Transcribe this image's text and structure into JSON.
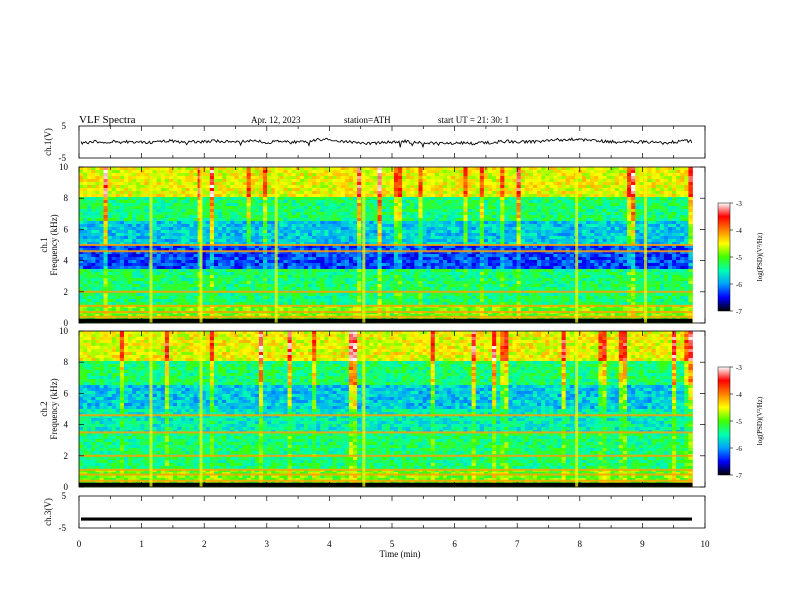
{
  "header": {
    "title": "VLF  Spectra",
    "date": "Apr. 12, 2023",
    "station": "station=ATH",
    "start": "start  UT  =    21: 30: 1"
  },
  "chart_data": [
    {
      "type": "line",
      "ylabel": "ch.1(V)",
      "ylim": [
        -5,
        5
      ],
      "yticks": [
        "5",
        "-5"
      ],
      "baseline": 0,
      "color": "#000000"
    },
    {
      "type": "heatmap",
      "ylabel": "ch.1",
      "ylabel2": "Frequency  (kHz)",
      "ylim": [
        0,
        10
      ],
      "yticks": [
        "10",
        "8",
        "6",
        "4",
        "2",
        "0"
      ],
      "xlim": [
        0,
        9.8
      ],
      "colorbar": {
        "label": "log(PSD)(V²/Hz)",
        "range": [
          -7,
          -3
        ],
        "ticks": [
          "-3",
          "-4",
          "-5",
          "-6",
          "-7"
        ],
        "colors": [
          "#000000",
          "#0000ff",
          "#00a0ff",
          "#00ffb0",
          "#40ff00",
          "#ffff00",
          "#ff8000",
          "#ff0000",
          "#ffffff"
        ]
      },
      "strong_lines_khz": [
        0.4,
        0.7,
        1.1,
        2.0,
        4.6,
        5.0
      ],
      "bursts_min": [
        1.15,
        1.95,
        3.15,
        4.55,
        7.95,
        9.05
      ]
    },
    {
      "type": "heatmap",
      "ylabel": "ch.2",
      "ylabel2": "Frequency  (kHz)",
      "ylim": [
        0,
        10
      ],
      "yticks": [
        "10",
        "8",
        "6",
        "4",
        "2",
        "0"
      ],
      "xlim": [
        0,
        9.8
      ],
      "colorbar": {
        "label": "log(PSD)(V²/Hz)",
        "range": [
          -7,
          -3
        ],
        "ticks": [
          "-3",
          "-4",
          "-5",
          "-6",
          "-7"
        ]
      },
      "strong_lines_khz": [
        0.4,
        0.8,
        1.1,
        2.0,
        3.5,
        4.6
      ],
      "bursts_min": [
        1.15,
        1.95,
        4.55,
        7.95
      ]
    },
    {
      "type": "line",
      "ylabel": "ch.3(V)",
      "ylim": [
        -5,
        5
      ],
      "yticks": [
        "5",
        "-5"
      ],
      "baseline": -2.2,
      "color": "#000000"
    }
  ],
  "xaxis": {
    "label": "Time  (min)",
    "ticks": [
      "0",
      "1",
      "2",
      "3",
      "4",
      "5",
      "6",
      "7",
      "8",
      "9",
      "10"
    ],
    "xlim": [
      0,
      10
    ]
  }
}
